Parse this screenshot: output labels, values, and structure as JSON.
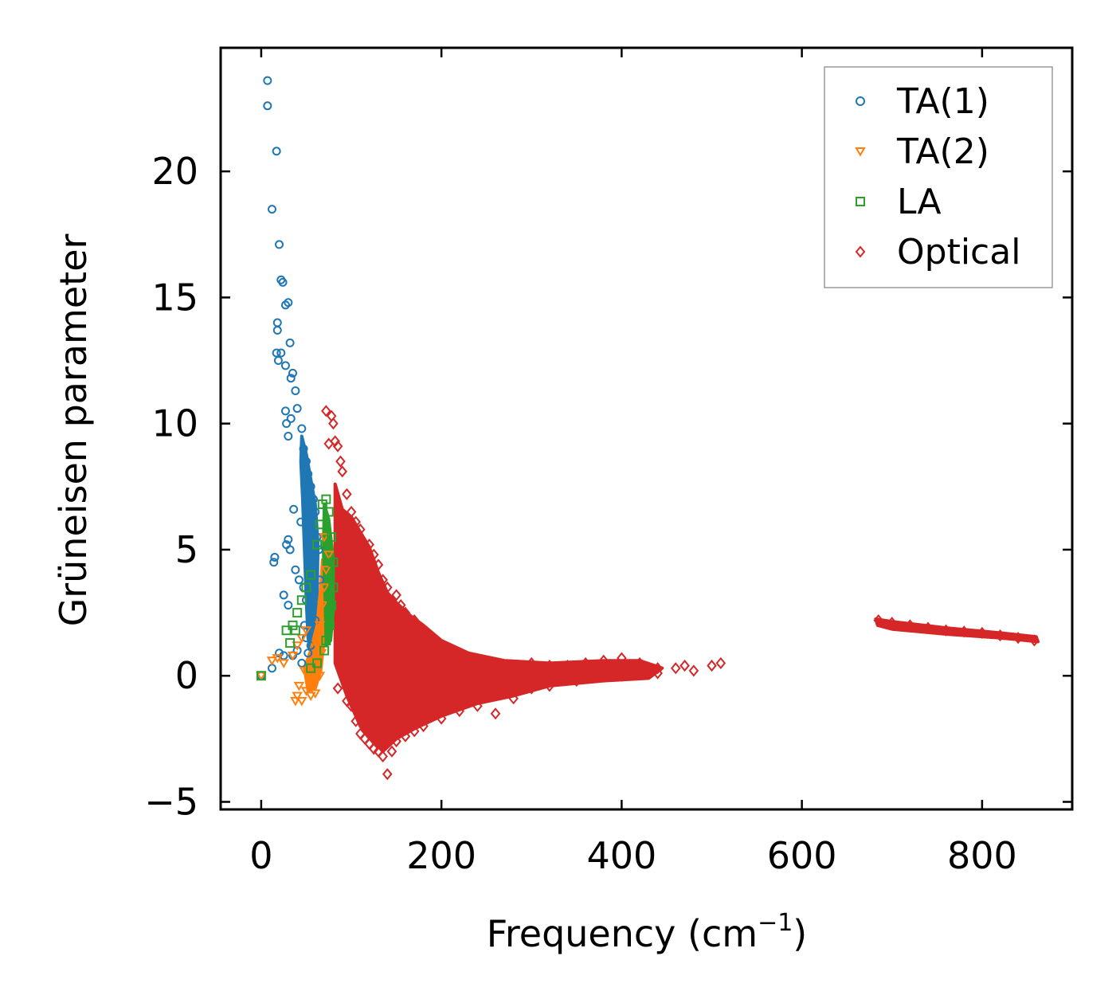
{
  "chart_data": {
    "type": "scatter",
    "title": "",
    "xlabel": {
      "prefix": "Frequency (cm",
      "sup": "−1",
      "suffix": ")"
    },
    "ylabel": "Grüneisen parameter",
    "xlim": [
      -45,
      900
    ],
    "ylim": [
      -5.3,
      24.9
    ],
    "xticks": [
      0,
      200,
      400,
      600,
      800
    ],
    "xtick_labels": [
      "0",
      "200",
      "400",
      "600",
      "800"
    ],
    "yticks": [
      -5,
      0,
      5,
      10,
      15,
      20
    ],
    "ytick_labels": [
      "−5",
      "0",
      "5",
      "10",
      "15",
      "20"
    ],
    "grid": false,
    "legend_position": "top-right",
    "colors": {
      "TA(1)": "#1f77b4",
      "TA(2)": "#ff7f0e",
      "LA": "#2ca02c",
      "Optical": "#d62728"
    },
    "series": [
      {
        "name": "TA(1)",
        "marker": "circle",
        "color": "#1f77b4",
        "points": [
          [
            0,
            0
          ],
          [
            7,
            23.6
          ],
          [
            7,
            22.6
          ],
          [
            17,
            20.8
          ],
          [
            12,
            18.5
          ],
          [
            20,
            17.1
          ],
          [
            22,
            15.7
          ],
          [
            24,
            15.6
          ],
          [
            27,
            14.7
          ],
          [
            30,
            14.8
          ],
          [
            18,
            14.0
          ],
          [
            18,
            13.7
          ],
          [
            32,
            13.2
          ],
          [
            17,
            12.8
          ],
          [
            22,
            12.8
          ],
          [
            19,
            12.5
          ],
          [
            27,
            12.3
          ],
          [
            35,
            12.0
          ],
          [
            33,
            11.8
          ],
          [
            38,
            11.3
          ],
          [
            40,
            10.6
          ],
          [
            27,
            10.5
          ],
          [
            33,
            10.2
          ],
          [
            28,
            10.0
          ],
          [
            45,
            9.8
          ],
          [
            30,
            9.5
          ],
          [
            47,
            9.0
          ],
          [
            50,
            8.5
          ],
          [
            52,
            8.0
          ],
          [
            55,
            7.5
          ],
          [
            58,
            7.0
          ],
          [
            36,
            6.6
          ],
          [
            60,
            6.5
          ],
          [
            44,
            6.1
          ],
          [
            30,
            5.4
          ],
          [
            28,
            5.2
          ],
          [
            32,
            5.0
          ],
          [
            15,
            4.7
          ],
          [
            14,
            4.5
          ],
          [
            62,
            5.5
          ],
          [
            64,
            5.0
          ],
          [
            38,
            4.2
          ],
          [
            42,
            3.8
          ],
          [
            25,
            3.2
          ],
          [
            30,
            2.8
          ],
          [
            47,
            3.5
          ],
          [
            50,
            3.0
          ],
          [
            55,
            2.5
          ],
          [
            60,
            2.2
          ],
          [
            65,
            3.8
          ],
          [
            48,
            2.0
          ],
          [
            50,
            1.5
          ],
          [
            55,
            1.2
          ],
          [
            40,
            1.0
          ],
          [
            35,
            0.8
          ],
          [
            25,
            0.8
          ],
          [
            20,
            0.9
          ],
          [
            12,
            0.3
          ],
          [
            45,
            0.5
          ],
          [
            52,
            0.9
          ]
        ]
      },
      {
        "name": "TA(2)",
        "marker": "triangle-down",
        "color": "#ff7f0e",
        "points": [
          [
            0,
            0
          ],
          [
            12,
            0.6
          ],
          [
            18,
            0.7
          ],
          [
            25,
            0.5
          ],
          [
            35,
            0.8
          ],
          [
            40,
            1.2
          ],
          [
            45,
            1.5
          ],
          [
            50,
            1.8
          ],
          [
            48,
            0.2
          ],
          [
            42,
            -0.4
          ],
          [
            40,
            -0.8
          ],
          [
            45,
            -1.0
          ],
          [
            50,
            -0.6
          ],
          [
            55,
            -0.8
          ],
          [
            58,
            -0.3
          ],
          [
            60,
            0.5
          ],
          [
            62,
            1.2
          ],
          [
            65,
            2.0
          ],
          [
            68,
            2.8
          ],
          [
            70,
            3.5
          ],
          [
            72,
            4.2
          ],
          [
            75,
            4.8
          ],
          [
            70,
            5.5
          ],
          [
            67,
            0.9
          ],
          [
            65,
            0.0
          ],
          [
            55,
            0.3
          ],
          [
            38,
            -1.0
          ],
          [
            60,
            -0.7
          ]
        ]
      },
      {
        "name": "LA",
        "marker": "square",
        "color": "#2ca02c",
        "points": [
          [
            0,
            0
          ],
          [
            28,
            1.8
          ],
          [
            35,
            2.0
          ],
          [
            40,
            2.5
          ],
          [
            45,
            3.0
          ],
          [
            50,
            3.5
          ],
          [
            55,
            4.0
          ],
          [
            62,
            5.2
          ],
          [
            65,
            6.0
          ],
          [
            68,
            6.8
          ],
          [
            72,
            7.0
          ],
          [
            75,
            6.5
          ],
          [
            78,
            5.5
          ],
          [
            80,
            4.5
          ],
          [
            80,
            3.5
          ],
          [
            78,
            2.8
          ],
          [
            76,
            2.0
          ],
          [
            72,
            1.4
          ],
          [
            70,
            1.0
          ],
          [
            62,
            0.5
          ],
          [
            55,
            0.3
          ],
          [
            32,
            1.3
          ],
          [
            38,
            1.8
          ]
        ]
      },
      {
        "name": "Optical",
        "marker": "diamond",
        "color": "#d62728",
        "points": [
          [
            72,
            10.5
          ],
          [
            78,
            10.3
          ],
          [
            80,
            10.0
          ],
          [
            75,
            9.2
          ],
          [
            82,
            9.3
          ],
          [
            85,
            9.1
          ],
          [
            88,
            8.5
          ],
          [
            90,
            8.1
          ],
          [
            95,
            7.2
          ],
          [
            100,
            6.5
          ],
          [
            105,
            6.1
          ],
          [
            110,
            5.8
          ],
          [
            120,
            5.2
          ],
          [
            125,
            4.8
          ],
          [
            130,
            4.4
          ],
          [
            135,
            3.8
          ],
          [
            140,
            3.5
          ],
          [
            150,
            3.2
          ],
          [
            155,
            2.8
          ],
          [
            160,
            2.5
          ],
          [
            170,
            2.2
          ],
          [
            180,
            1.8
          ],
          [
            190,
            1.5
          ],
          [
            200,
            1.2
          ],
          [
            220,
            0.8
          ],
          [
            240,
            0.5
          ],
          [
            260,
            0.5
          ],
          [
            280,
            0.3
          ],
          [
            300,
            0.5
          ],
          [
            320,
            0.4
          ],
          [
            340,
            0.4
          ],
          [
            360,
            0.5
          ],
          [
            380,
            0.6
          ],
          [
            400,
            0.7
          ],
          [
            420,
            0.5
          ],
          [
            440,
            0.3
          ],
          [
            460,
            0.3
          ],
          [
            470,
            0.4
          ],
          [
            480,
            0.2
          ],
          [
            500,
            0.4
          ],
          [
            510,
            0.5
          ],
          [
            85,
            -0.5
          ],
          [
            95,
            -1.0
          ],
          [
            100,
            -1.2
          ],
          [
            105,
            -1.8
          ],
          [
            110,
            -2.3
          ],
          [
            115,
            -2.5
          ],
          [
            120,
            -2.7
          ],
          [
            125,
            -2.9
          ],
          [
            130,
            -3.0
          ],
          [
            135,
            -3.2
          ],
          [
            140,
            -3.9
          ],
          [
            145,
            -3.0
          ],
          [
            150,
            -2.6
          ],
          [
            160,
            -2.4
          ],
          [
            170,
            -2.2
          ],
          [
            180,
            -2.0
          ],
          [
            200,
            -1.7
          ],
          [
            220,
            -1.4
          ],
          [
            240,
            -1.2
          ],
          [
            260,
            -1.5
          ],
          [
            280,
            -0.9
          ],
          [
            300,
            -0.5
          ],
          [
            320,
            -0.4
          ],
          [
            350,
            -0.2
          ],
          [
            400,
            0.0
          ],
          [
            440,
            0.1
          ],
          [
            685,
            2.2
          ],
          [
            700,
            2.1
          ],
          [
            720,
            2.0
          ],
          [
            740,
            1.9
          ],
          [
            760,
            1.8
          ],
          [
            780,
            1.75
          ],
          [
            800,
            1.7
          ],
          [
            820,
            1.6
          ],
          [
            840,
            1.5
          ],
          [
            858,
            1.4
          ]
        ]
      }
    ]
  }
}
